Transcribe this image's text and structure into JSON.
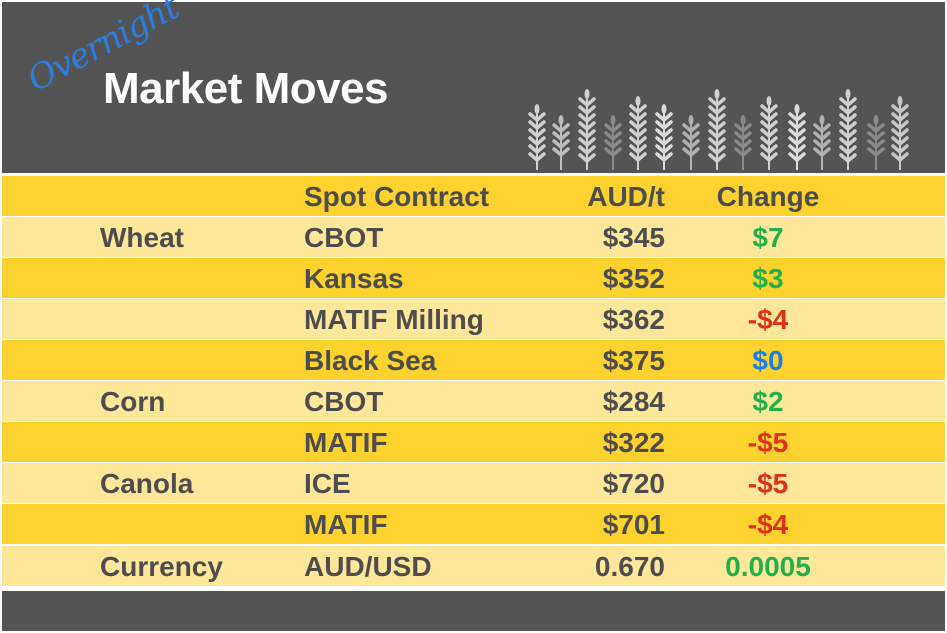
{
  "header": {
    "overnight": "Overnight",
    "title": "Market Moves",
    "decoration": "wheat-stalks-icon"
  },
  "colors": {
    "background_dark": "#545454",
    "row_dark": "#fdd22e",
    "row_light": "#ffe79a",
    "text": "#4d4d4d",
    "up": "#22b04b",
    "down": "#e0301e",
    "flat": "#1a7fe6",
    "overnight": "#2a7de1"
  },
  "columns": {
    "crop": "",
    "contract": "Spot Contract",
    "price": "AUD/t",
    "change": "Change"
  },
  "rows": [
    {
      "crop": "Wheat",
      "contract": "CBOT",
      "price": "$345",
      "change": "$7",
      "direction": "up"
    },
    {
      "crop": "",
      "contract": "Kansas",
      "price": "$352",
      "change": "$3",
      "direction": "up"
    },
    {
      "crop": "",
      "contract": "MATIF Milling",
      "price": "$362",
      "change": "-$4",
      "direction": "down"
    },
    {
      "crop": "",
      "contract": "Black Sea",
      "price": "$375",
      "change": "$0",
      "direction": "flat"
    },
    {
      "crop": "Corn",
      "contract": "CBOT",
      "price": "$284",
      "change": "$2",
      "direction": "up"
    },
    {
      "crop": "",
      "contract": "MATIF",
      "price": "$322",
      "change": "-$5",
      "direction": "down"
    },
    {
      "crop": "Canola",
      "contract": "ICE",
      "price": "$720",
      "change": "-$5",
      "direction": "down"
    },
    {
      "crop": "",
      "contract": "MATIF",
      "price": "$701",
      "change": "-$4",
      "direction": "down"
    },
    {
      "crop": "Currency",
      "contract": "AUD/USD",
      "price": "0.670",
      "change": "0.0005",
      "direction": "up"
    }
  ]
}
